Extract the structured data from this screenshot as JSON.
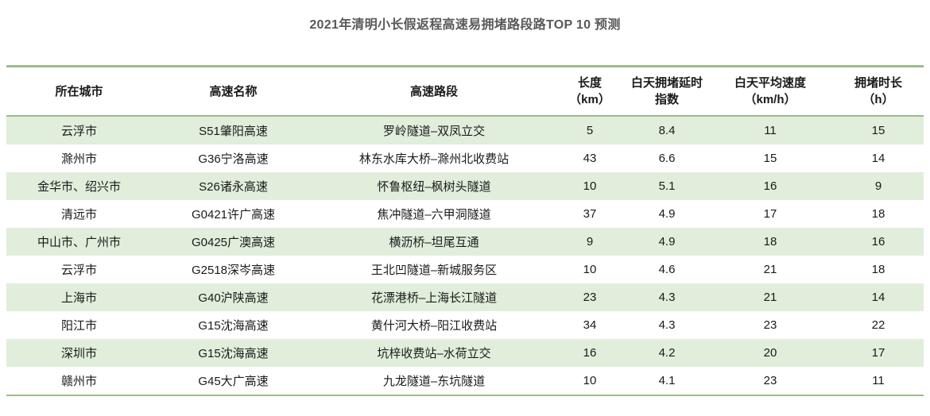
{
  "title": "2021年清明小长假返程高速易拥堵路段路TOP 10 预测",
  "colors": {
    "accent_green": "#9cbc8b",
    "row_band_green": "#e0eedb",
    "title_gray": "#595959",
    "text_black": "#1a1a1a"
  },
  "chart_data": {
    "type": "table",
    "title": "2021年清明小长假返程高速易拥堵路段路TOP 10 预测",
    "columns": [
      {
        "label": "所在城市",
        "sub": ""
      },
      {
        "label": "高速名称",
        "sub": ""
      },
      {
        "label": "高速路段",
        "sub": ""
      },
      {
        "label": "长度",
        "sub": "（km）"
      },
      {
        "label": "白天拥堵延时",
        "sub": "指数"
      },
      {
        "label": "白天平均速度",
        "sub": "（km/h）"
      },
      {
        "label": "拥堵时长",
        "sub": "（h）"
      }
    ],
    "rows": [
      [
        "云浮市",
        "S51肇阳高速",
        "罗岭隧道–双凤立交",
        5,
        8.4,
        11,
        15
      ],
      [
        "滁州市",
        "G36宁洛高速",
        "林东水库大桥–滁州北收费站",
        43,
        6.6,
        15,
        14
      ],
      [
        "金华市、绍兴市",
        "S26诸永高速",
        "怀鲁枢纽–枫树头隧道",
        10,
        5.1,
        16,
        9
      ],
      [
        "清远市",
        "G0421许广高速",
        "焦冲隧道–六甲洞隧道",
        37,
        4.9,
        17,
        18
      ],
      [
        "中山市、广州市",
        "G0425广澳高速",
        "横沥桥–坦尾互通",
        9,
        4.9,
        18,
        16
      ],
      [
        "云浮市",
        "G2518深岑高速",
        "王北凹隧道–新城服务区",
        10,
        4.6,
        21,
        18
      ],
      [
        "上海市",
        "G40沪陕高速",
        "花漂港桥–上海长江隧道",
        23,
        4.3,
        21,
        14
      ],
      [
        "阳江市",
        "G15沈海高速",
        "黄什河大桥–阳江收费站",
        34,
        4.3,
        23,
        22
      ],
      [
        "深圳市",
        "G15沈海高速",
        "坑梓收费站–水荷立交",
        16,
        4.2,
        20,
        17
      ],
      [
        "赣州市",
        "G45大广高速",
        "九龙隧道–东坑隧道",
        10,
        4.1,
        23,
        11
      ]
    ]
  }
}
